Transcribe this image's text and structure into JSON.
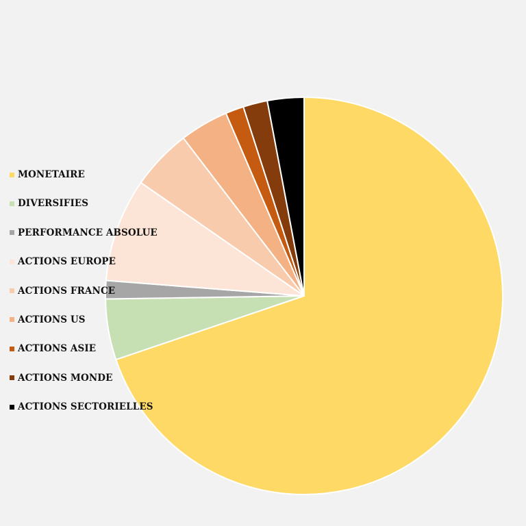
{
  "chart_data": {
    "type": "pie",
    "title": "",
    "start_angle_deg": 0,
    "direction": "clockwise",
    "legend_position": "left",
    "slices": [
      {
        "label": "MONETAIRE",
        "value": 70.5,
        "color": "#ffd966"
      },
      {
        "label": "DIVERSIFIES",
        "value": 5.0,
        "color": "#c6e0b4"
      },
      {
        "label": "PERFORMANCE ABSOLUE",
        "value": 1.5,
        "color": "#a6a6a6"
      },
      {
        "label": "ACTIONS EUROPE",
        "value": 8.5,
        "color": "#fce4d6"
      },
      {
        "label": "ACTIONS FRANCE",
        "value": 5.0,
        "color": "#f8cbad"
      },
      {
        "label": "ACTIONS US",
        "value": 4.0,
        "color": "#f4b183"
      },
      {
        "label": "ACTIONS ASIE",
        "value": 1.5,
        "color": "#c55a11"
      },
      {
        "label": "ACTIONS MONDE",
        "value": 2.0,
        "color": "#843c0c"
      },
      {
        "label": "ACTIONS SECTORIELLES",
        "value": 3.0,
        "color": "#000000"
      }
    ]
  }
}
